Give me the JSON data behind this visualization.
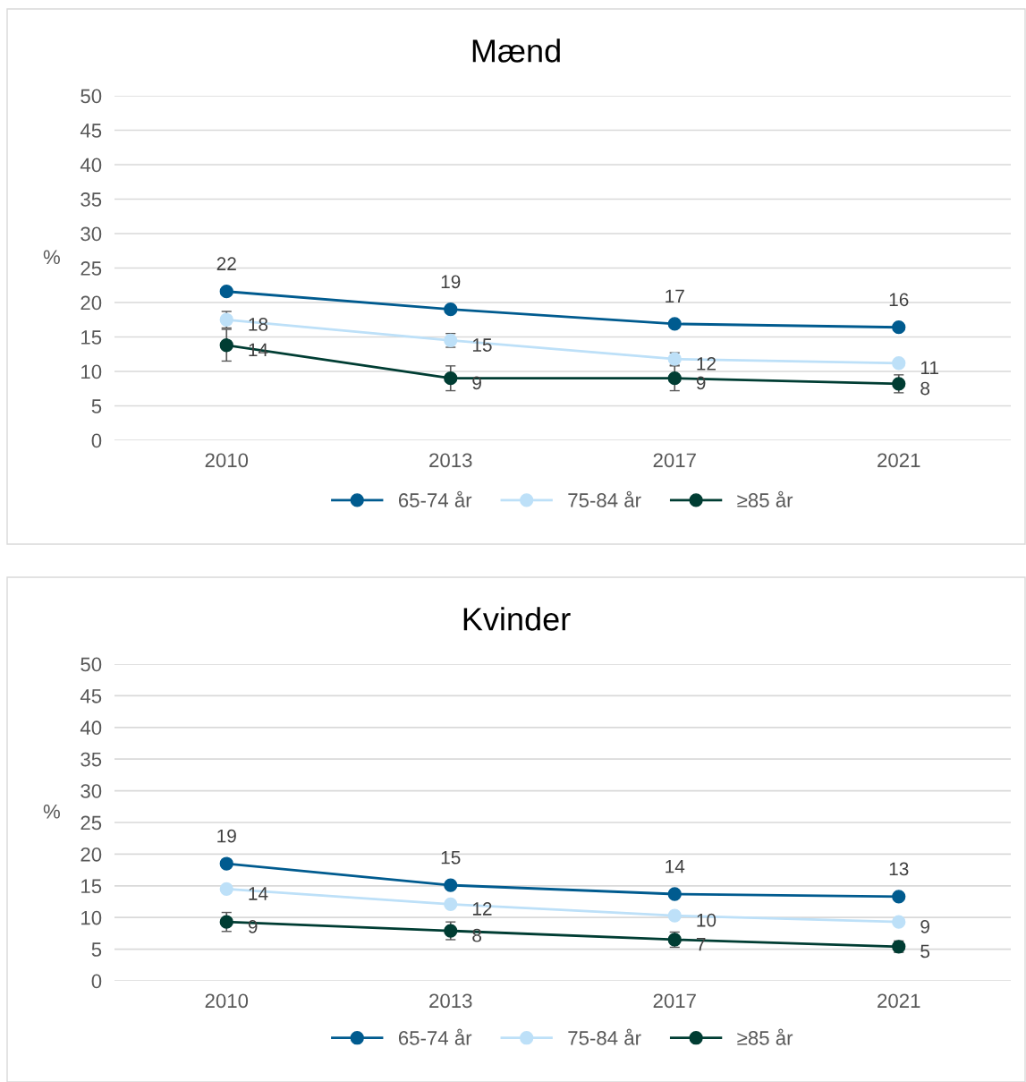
{
  "chart_data": [
    {
      "type": "line",
      "title": "Mænd",
      "ylabel": "%",
      "categories": [
        "2010",
        "2013",
        "2017",
        "2021"
      ],
      "ylim": [
        0,
        50
      ],
      "yticks": [
        0,
        5,
        10,
        15,
        20,
        25,
        30,
        35,
        40,
        45,
        50
      ],
      "grid": "y",
      "legend": "bottom",
      "marker": "circle",
      "line_style": "solid",
      "series": [
        {
          "name": "65-74 år",
          "color": "#005b8f",
          "values": [
            21.6,
            19.0,
            16.9,
            16.4
          ],
          "value_labels": [
            "22",
            "19",
            "17",
            "16"
          ]
        },
        {
          "name": "75-84 år",
          "color": "#bde0f8",
          "values": [
            17.5,
            14.5,
            11.8,
            11.2
          ],
          "errors": [
            1.2,
            1.0,
            0.9,
            null
          ],
          "value_labels": [
            "18",
            "15",
            "12",
            "11"
          ]
        },
        {
          "name": "≥85 år",
          "color": "#003d33",
          "values": [
            13.8,
            9.0,
            9.0,
            8.2
          ],
          "errors": [
            2.3,
            1.8,
            1.8,
            1.3
          ],
          "value_labels": [
            "14",
            "9",
            "9",
            "8"
          ]
        }
      ]
    },
    {
      "type": "line",
      "title": "Kvinder",
      "ylabel": "%",
      "categories": [
        "2010",
        "2013",
        "2017",
        "2021"
      ],
      "ylim": [
        0,
        50
      ],
      "yticks": [
        0,
        5,
        10,
        15,
        20,
        25,
        30,
        35,
        40,
        45,
        50
      ],
      "grid": "y",
      "legend": "bottom",
      "marker": "circle",
      "line_style": "solid",
      "series": [
        {
          "name": "65-74 år",
          "color": "#005b8f",
          "values": [
            18.5,
            15.1,
            13.7,
            13.3
          ],
          "value_labels": [
            "19",
            "15",
            "14",
            "13"
          ]
        },
        {
          "name": "75-84 år",
          "color": "#bde0f8",
          "values": [
            14.5,
            12.1,
            10.3,
            9.3
          ],
          "value_labels": [
            "14",
            "12",
            "10",
            "9"
          ]
        },
        {
          "name": "≥85 år",
          "color": "#003d33",
          "values": [
            9.3,
            7.9,
            6.5,
            5.4
          ],
          "errors": [
            1.5,
            1.4,
            1.2,
            0.9
          ],
          "value_labels": [
            "9",
            "8",
            "7",
            "5"
          ]
        }
      ]
    }
  ]
}
